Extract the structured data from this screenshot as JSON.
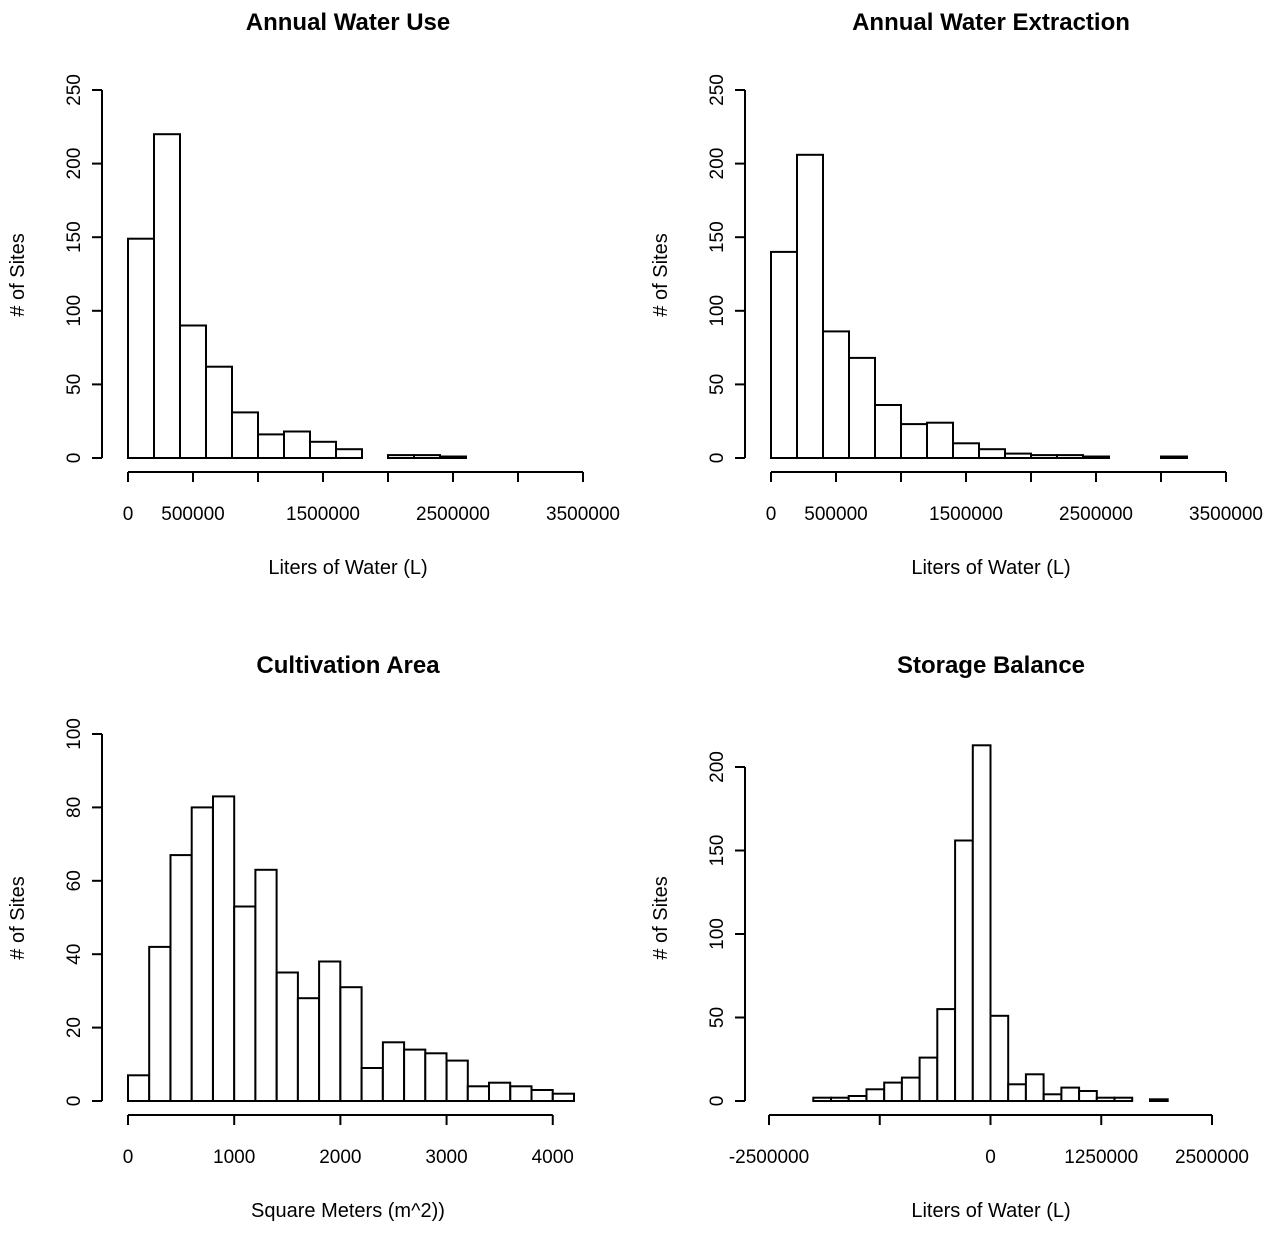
{
  "chart_data": [
    {
      "type": "bar",
      "title": "Annual Water Use",
      "xlabel": "Liters of Water (L)",
      "ylabel": "# of Sites",
      "bin_width": 200000,
      "x_bins_start": [
        0,
        200000,
        400000,
        600000,
        800000,
        1000000,
        1200000,
        1400000,
        1600000,
        1800000,
        2000000,
        2200000,
        2400000
      ],
      "values": [
        149,
        220,
        90,
        62,
        31,
        16,
        18,
        11,
        6,
        0,
        2,
        2,
        1
      ],
      "xlim": [
        0,
        3500000
      ],
      "ylim": [
        0,
        250
      ],
      "x_ticks": [
        0,
        500000,
        1000000,
        1500000,
        2000000,
        2500000,
        3000000,
        3500000
      ],
      "x_tick_labels": [
        "0",
        "500000",
        "",
        "1500000",
        "",
        "2500000",
        "",
        "3500000"
      ],
      "y_ticks": [
        0,
        50,
        100,
        150,
        200,
        250
      ],
      "y_tick_labels": [
        "0",
        "50",
        "100",
        "150",
        "200",
        "250"
      ]
    },
    {
      "type": "bar",
      "title": "Annual Water Extraction",
      "xlabel": "Liters of Water (L)",
      "ylabel": "# of Sites",
      "bin_width": 200000,
      "x_bins_start": [
        0,
        200000,
        400000,
        600000,
        800000,
        1000000,
        1200000,
        1400000,
        1600000,
        1800000,
        2000000,
        2200000,
        2400000,
        2600000,
        2800000,
        3000000
      ],
      "values": [
        140,
        206,
        86,
        68,
        36,
        23,
        24,
        10,
        6,
        3,
        2,
        2,
        1,
        0,
        0,
        1
      ],
      "xlim": [
        0,
        3500000
      ],
      "ylim": [
        0,
        250
      ],
      "x_ticks": [
        0,
        500000,
        1000000,
        1500000,
        2000000,
        2500000,
        3000000,
        3500000
      ],
      "x_tick_labels": [
        "0",
        "500000",
        "",
        "1500000",
        "",
        "2500000",
        "",
        "3500000"
      ],
      "y_ticks": [
        0,
        50,
        100,
        150,
        200,
        250
      ],
      "y_tick_labels": [
        "0",
        "50",
        "100",
        "150",
        "200",
        "250"
      ]
    },
    {
      "type": "bar",
      "title": "Cultivation Area",
      "xlabel": "Square Meters (m^2))",
      "ylabel": "# of Sites",
      "bin_width": 200,
      "x_bins_start": [
        0,
        200,
        400,
        600,
        800,
        1000,
        1200,
        1400,
        1600,
        1800,
        2000,
        2200,
        2400,
        2600,
        2800,
        3000,
        3200,
        3400,
        3600,
        3800,
        4000
      ],
      "values": [
        7,
        42,
        67,
        80,
        83,
        53,
        63,
        35,
        28,
        38,
        31,
        9,
        16,
        14,
        13,
        11,
        4,
        5,
        4,
        3,
        2
      ],
      "xlim": [
        0,
        4200
      ],
      "ylim": [
        0,
        100
      ],
      "x_ticks": [
        0,
        1000,
        2000,
        3000,
        4000
      ],
      "x_tick_labels": [
        "0",
        "1000",
        "2000",
        "3000",
        "4000"
      ],
      "y_ticks": [
        0,
        20,
        40,
        60,
        80,
        100
      ],
      "y_tick_labels": [
        "0",
        "20",
        "40",
        "60",
        "80",
        "100"
      ]
    },
    {
      "type": "bar",
      "title": "Storage Balance",
      "xlabel": "Liters of Water (L)",
      "ylabel": "# of Sites",
      "bin_width": 200000,
      "x_bins_start": [
        -2000000,
        -1800000,
        -1600000,
        -1400000,
        -1200000,
        -1000000,
        -800000,
        -600000,
        -400000,
        -200000,
        0,
        200000,
        400000,
        600000,
        800000,
        1000000,
        1200000,
        1400000,
        1600000,
        1800000
      ],
      "values": [
        2,
        2,
        3,
        7,
        11,
        14,
        26,
        55,
        156,
        213,
        51,
        10,
        16,
        4,
        8,
        6,
        2,
        2,
        0,
        1
      ],
      "xlim": [
        -2500000,
        2500000
      ],
      "ylim": [
        0,
        200
      ],
      "x_ticks": [
        -2500000,
        -1250000,
        0,
        1250000,
        2500000
      ],
      "x_tick_labels": [
        "-2500000",
        "",
        "0",
        "1250000",
        "2500000"
      ],
      "y_ticks": [
        0,
        50,
        100,
        150,
        200
      ],
      "y_tick_labels": [
        "0",
        "50",
        "100",
        "150",
        "200"
      ]
    }
  ]
}
